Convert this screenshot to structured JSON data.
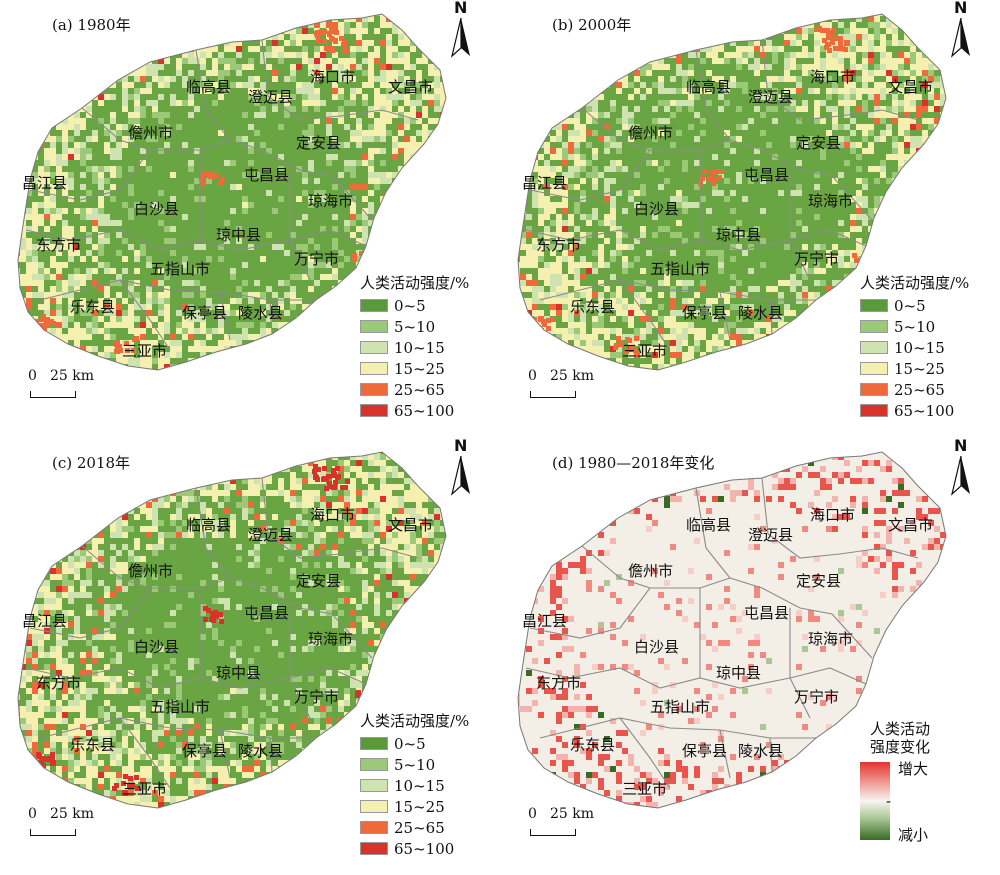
{
  "panels": [
    {
      "title": "(a) 1980年",
      "type": "intensity",
      "places": [
        "临高县",
        "澄迈县",
        "海口市",
        "文昌市",
        "儋州市",
        "定安县",
        "屯昌县",
        "昌江县",
        "琼海市",
        "白沙县",
        "琼中县",
        "东方市",
        "五指山市",
        "万宁市",
        "乐东县",
        "保亭县",
        "陵水县",
        "三亚市"
      ]
    },
    {
      "title": "(b) 2000年",
      "type": "intensity",
      "places": [
        "临高县",
        "澄迈县",
        "海口市",
        "文昌市",
        "儋州市",
        "定安县",
        "屯昌县",
        "昌江县",
        "琼海市",
        "白沙县",
        "琼中县",
        "东方市",
        "五指山市",
        "万宁市",
        "乐东县",
        "保亭县",
        "陵水县",
        "三亚市"
      ]
    },
    {
      "title": "(c) 2018年",
      "type": "intensity",
      "places": [
        "临高县",
        "澄迈县",
        "海口市",
        "文昌市",
        "儋州市",
        "定安县",
        "屯昌县",
        "昌江县",
        "琼海市",
        "白沙县",
        "琼中县",
        "东方市",
        "五指山市",
        "万宁市",
        "乐东县",
        "保亭县",
        "陵水县",
        "三亚市"
      ]
    },
    {
      "title": "(d) 1980—2018年变化",
      "type": "change",
      "places": [
        "临高县",
        "澄迈县",
        "海口市",
        "文昌市",
        "儋州市",
        "定安县",
        "屯昌县",
        "昌江县",
        "琼海市",
        "白沙县",
        "琼中县",
        "东方市",
        "五指山市",
        "万宁市",
        "乐东县",
        "保亭县",
        "陵水县",
        "三亚市"
      ]
    }
  ],
  "legend": {
    "title": "人类活动强度/%",
    "classes": [
      {
        "label": "0~5",
        "color": "#5a9a3a"
      },
      {
        "label": "5~10",
        "color": "#9cc977"
      },
      {
        "label": "10~15",
        "color": "#cfe3b0"
      },
      {
        "label": "15~25",
        "color": "#f5f0b0"
      },
      {
        "label": "25~65",
        "color": "#ee6a3a"
      },
      {
        "label": "65~100",
        "color": "#d7332a"
      }
    ]
  },
  "change_legend": {
    "title_line1": "人类活动",
    "title_line2": "强度变化",
    "high": "增大",
    "mid": "-",
    "low": "减小"
  },
  "scale": {
    "zero": "0",
    "distance": "25 km"
  },
  "north": "N",
  "colors": {
    "change_bg": "#f3efe6",
    "change_up": "#e3342f",
    "change_down": "#3a6b25",
    "boundary": "#8a8a8a"
  }
}
